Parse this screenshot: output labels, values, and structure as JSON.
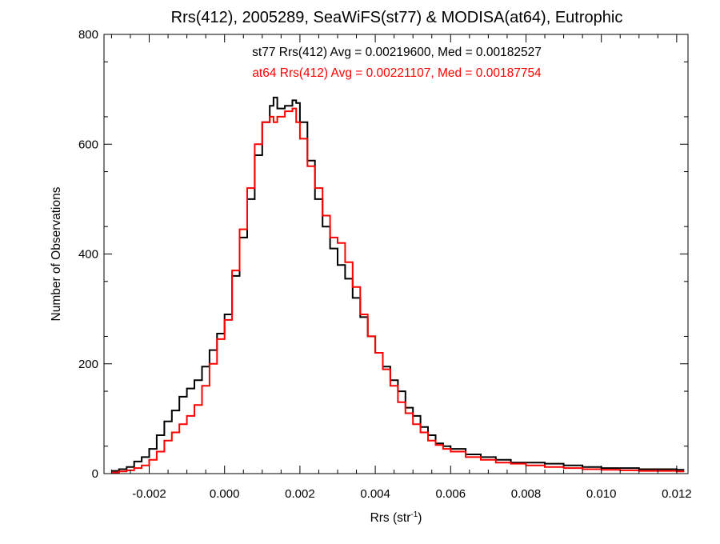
{
  "chart_data": {
    "type": "line",
    "step": true,
    "title": "Rrs(412), 2005289, SeaWiFS(st77) & MODISA(at64), Eutrophic",
    "xlabel": "Rrs (str",
    "xlabel_sup": "-1",
    "xlabel_end": ")",
    "ylabel": "Number of Observations",
    "xlim": [
      -0.0032,
      0.0123
    ],
    "ylim": [
      0,
      800
    ],
    "xticks": [
      -0.002,
      0.0,
      0.002,
      0.004,
      0.006,
      0.008,
      0.01,
      0.012
    ],
    "xtick_labels": [
      "-0.002",
      "0.000",
      "0.002",
      "0.004",
      "0.006",
      "0.008",
      "0.010",
      "0.012"
    ],
    "yticks": [
      0,
      200,
      400,
      600,
      800
    ],
    "ytick_labels": [
      "0",
      "200",
      "400",
      "600",
      "800"
    ],
    "grid": false,
    "annotations": [
      {
        "text": "st77 Rrs(412) Avg = 0.00219600, Med = 0.00182527",
        "color": "#000000"
      },
      {
        "text": "at64 Rrs(412) Avg = 0.00221107, Med = 0.00187754",
        "color": "#ff0000"
      }
    ],
    "series": [
      {
        "color": "#000000",
        "x": [
          -0.003,
          -0.0028,
          -0.0026,
          -0.0024,
          -0.0022,
          -0.002,
          -0.0018,
          -0.0016,
          -0.0014,
          -0.0012,
          -0.001,
          -0.0008,
          -0.0006,
          -0.0004,
          -0.0002,
          0.0,
          0.0002,
          0.0004,
          0.0006,
          0.0008,
          0.001,
          0.0012,
          0.0013,
          0.0014,
          0.0016,
          0.0018,
          0.0019,
          0.002,
          0.0022,
          0.0024,
          0.0026,
          0.0028,
          0.003,
          0.0032,
          0.0034,
          0.0036,
          0.0038,
          0.004,
          0.0042,
          0.0044,
          0.0046,
          0.0048,
          0.005,
          0.0052,
          0.0054,
          0.0056,
          0.0058,
          0.006,
          0.0064,
          0.0068,
          0.0072,
          0.0076,
          0.008,
          0.0085,
          0.009,
          0.0095,
          0.01,
          0.0105,
          0.011,
          0.0115,
          0.012
        ],
        "y": [
          5,
          8,
          12,
          22,
          30,
          45,
          70,
          95,
          115,
          140,
          155,
          170,
          195,
          225,
          255,
          290,
          360,
          430,
          500,
          580,
          640,
          670,
          685,
          665,
          670,
          680,
          675,
          640,
          570,
          500,
          450,
          410,
          380,
          355,
          320,
          285,
          250,
          220,
          195,
          170,
          150,
          120,
          105,
          85,
          70,
          55,
          50,
          45,
          35,
          30,
          25,
          20,
          20,
          18,
          15,
          12,
          10,
          10,
          8,
          8,
          7
        ]
      },
      {
        "color": "#ff0000",
        "x": [
          -0.003,
          -0.0028,
          -0.0026,
          -0.0024,
          -0.0022,
          -0.002,
          -0.0018,
          -0.0016,
          -0.0014,
          -0.0012,
          -0.001,
          -0.0008,
          -0.0006,
          -0.0004,
          -0.0002,
          0.0,
          0.0002,
          0.0004,
          0.0006,
          0.0008,
          0.001,
          0.0012,
          0.0013,
          0.0014,
          0.0016,
          0.0018,
          0.0019,
          0.002,
          0.0022,
          0.0024,
          0.0026,
          0.0028,
          0.003,
          0.0032,
          0.0034,
          0.0036,
          0.0038,
          0.004,
          0.0042,
          0.0044,
          0.0046,
          0.0048,
          0.005,
          0.0052,
          0.0054,
          0.0056,
          0.0058,
          0.006,
          0.0064,
          0.0068,
          0.0072,
          0.0076,
          0.008,
          0.0085,
          0.009,
          0.0095,
          0.01,
          0.0105,
          0.011,
          0.0115,
          0.012
        ],
        "y": [
          2,
          4,
          6,
          10,
          15,
          25,
          40,
          60,
          75,
          90,
          105,
          125,
          160,
          200,
          245,
          280,
          370,
          445,
          520,
          600,
          640,
          650,
          640,
          650,
          660,
          665,
          640,
          610,
          560,
          520,
          470,
          430,
          420,
          385,
          340,
          290,
          250,
          220,
          190,
          160,
          130,
          110,
          90,
          75,
          60,
          52,
          45,
          40,
          30,
          25,
          20,
          18,
          15,
          12,
          10,
          8,
          7,
          6,
          5,
          5,
          4
        ]
      }
    ]
  }
}
